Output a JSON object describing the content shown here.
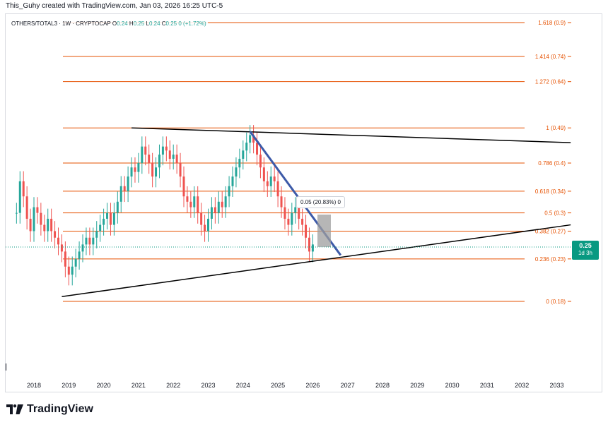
{
  "header": {
    "creator_line": "This_Guhy created with TradingView.com, Jan 03, 2026 16:25 UTC-5"
  },
  "legend": {
    "symbol": "OTHERS/TOTAL3 · 1W · CRYPTOCAP",
    "o_label": "O",
    "o_value": "0.24",
    "h_label": "H",
    "h_value": "0.25",
    "l_label": "L",
    "l_value": "0.24",
    "c_label": "C",
    "c_value": "0.25",
    "change": "0 (+1.72%)"
  },
  "price_tag": {
    "price": "0.25",
    "countdown": "1d 3h",
    "color": "#089981"
  },
  "measure_label": "0.05 (20.83%) 0",
  "brand": {
    "name": "TradingView"
  },
  "colors": {
    "fib": "#e65100",
    "trendline": "#000000",
    "downtrend": "#3d5aa8",
    "up": "#26a69a",
    "down": "#ef5350",
    "measure_box": "#9e9e9e"
  },
  "chart_data": {
    "type": "line",
    "x_axis": {
      "ticks": [
        "2018",
        "2019",
        "2020",
        "2021",
        "2022",
        "2023",
        "2024",
        "2025",
        "2026",
        "2027",
        "2028",
        "2029",
        "2030",
        "2031",
        "2032",
        "2033"
      ],
      "range": [
        2017.3,
        2033.4
      ]
    },
    "y_axis": {
      "range": [
        0.15,
        0.92
      ],
      "grid": false
    },
    "fib_levels": [
      {
        "label": "1.618 (0.9)",
        "price": 0.9
      },
      {
        "label": "1.414 (0.74)",
        "price": 0.74
      },
      {
        "label": "1.272 (0.64)",
        "price": 0.64
      },
      {
        "label": "1 (0.49)",
        "price": 0.49
      },
      {
        "label": "0.786 (0.4)",
        "price": 0.4
      },
      {
        "label": "0.618 (0.34)",
        "price": 0.34
      },
      {
        "label": "0.5 (0.3)",
        "price": 0.3
      },
      {
        "label": "0.382 (0.27)",
        "price": 0.27
      },
      {
        "label": "0.236 (0.23)",
        "price": 0.23
      },
      {
        "label": "0 (0.18)",
        "price": 0.18
      }
    ],
    "series": [
      {
        "kind": "price",
        "x": [
          2017.5,
          2017.6,
          2017.7,
          2017.8,
          2017.9,
          2018.0,
          2018.1,
          2018.2,
          2018.3,
          2018.4,
          2018.5,
          2018.6,
          2018.7,
          2018.8,
          2018.9,
          2019.0,
          2019.1,
          2019.2,
          2019.3,
          2019.4,
          2019.5,
          2019.6,
          2019.7,
          2019.8,
          2019.9,
          2020.0,
          2020.1,
          2020.2,
          2020.3,
          2020.4,
          2020.5,
          2020.6,
          2020.7,
          2020.8,
          2020.9,
          2021.0,
          2021.1,
          2021.2,
          2021.3,
          2021.4,
          2021.5,
          2021.6,
          2021.7,
          2021.8,
          2021.9,
          2022.0,
          2022.1,
          2022.2,
          2022.3,
          2022.4,
          2022.5,
          2022.6,
          2022.7,
          2022.8,
          2022.9,
          2023.0,
          2023.1,
          2023.2,
          2023.3,
          2023.4,
          2023.5,
          2023.6,
          2023.7,
          2023.8,
          2023.9,
          2024.0,
          2024.1,
          2024.2,
          2024.3,
          2024.4,
          2024.5,
          2024.6,
          2024.7,
          2024.8,
          2024.9,
          2025.0,
          2025.1,
          2025.2,
          2025.3,
          2025.4,
          2025.5,
          2025.6,
          2025.7,
          2025.8,
          2025.9,
          2026.0
        ],
        "y": [
          0.3,
          0.36,
          0.33,
          0.29,
          0.27,
          0.31,
          0.3,
          0.28,
          0.27,
          0.29,
          0.27,
          0.26,
          0.25,
          0.24,
          0.22,
          0.21,
          0.22,
          0.23,
          0.24,
          0.25,
          0.26,
          0.25,
          0.26,
          0.27,
          0.28,
          0.29,
          0.3,
          0.28,
          0.3,
          0.32,
          0.35,
          0.34,
          0.37,
          0.39,
          0.38,
          0.4,
          0.44,
          0.42,
          0.4,
          0.37,
          0.39,
          0.42,
          0.44,
          0.43,
          0.41,
          0.42,
          0.4,
          0.37,
          0.33,
          0.32,
          0.31,
          0.33,
          0.3,
          0.28,
          0.27,
          0.29,
          0.31,
          0.3,
          0.32,
          0.31,
          0.33,
          0.35,
          0.37,
          0.39,
          0.41,
          0.43,
          0.45,
          0.47,
          0.45,
          0.42,
          0.39,
          0.36,
          0.35,
          0.37,
          0.36,
          0.33,
          0.31,
          0.29,
          0.28,
          0.3,
          0.31,
          0.29,
          0.28,
          0.26,
          0.24,
          0.25
        ]
      }
    ],
    "trendlines": [
      {
        "name_id": "resistance-trendline",
        "x": [
          2020.8,
          2033.4
        ],
        "y": [
          0.49,
          0.45
        ]
      },
      {
        "name_id": "support-trendline",
        "x": [
          2018.8,
          2033.4
        ],
        "y": [
          0.185,
          0.28
        ]
      },
      {
        "name_id": "downtrend-line",
        "x": [
          2024.2,
          2026.8
        ],
        "y": [
          0.48,
          0.235
        ]
      }
    ]
  }
}
